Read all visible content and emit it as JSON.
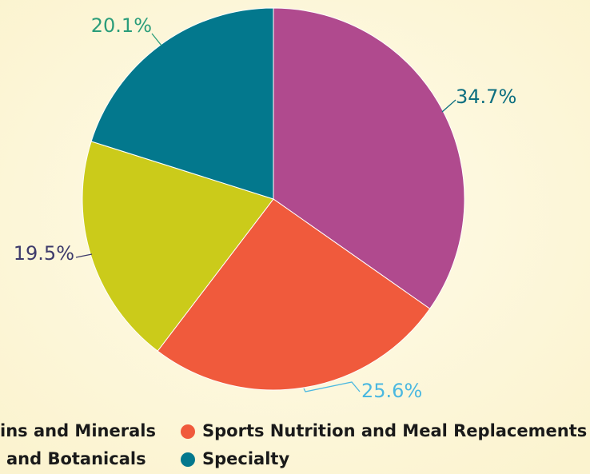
{
  "chart_data": {
    "type": "pie",
    "categories": [
      "ins and Minerals",
      "Sports Nutrition and Meal Replacements",
      "and Botanicals",
      "Specialty"
    ],
    "values": [
      34.7,
      25.6,
      19.5,
      20.1
    ],
    "value_labels": [
      "34.7%",
      "25.6%",
      "19.5%",
      "20.1%"
    ],
    "colors": [
      "#b04a8e",
      "#f05a3c",
      "#cbcb1a",
      "#03788d"
    ],
    "label_colors": [
      "#0d6f80",
      "#4bb8e0",
      "#3d3a6b",
      "#2a9d7a"
    ]
  }
}
